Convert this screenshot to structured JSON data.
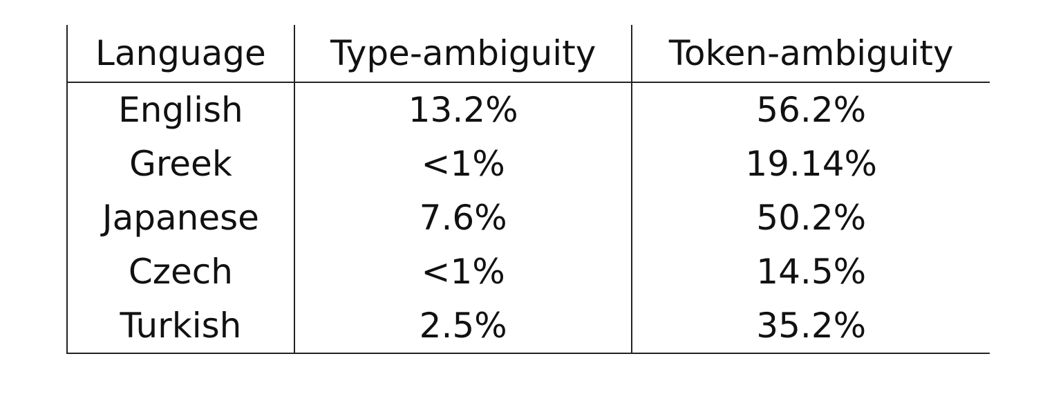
{
  "table": {
    "headers": [
      "Language",
      "Type-ambiguity",
      "Token-ambiguity"
    ],
    "rows": [
      [
        "English",
        "13.2%",
        "56.2%"
      ],
      [
        "Greek",
        "<1%",
        "19.14%"
      ],
      [
        "Japanese",
        "7.6%",
        "50.2%"
      ],
      [
        "Czech",
        "<1%",
        "14.5%"
      ],
      [
        "Turkish",
        "2.5%",
        "35.2%"
      ]
    ]
  }
}
